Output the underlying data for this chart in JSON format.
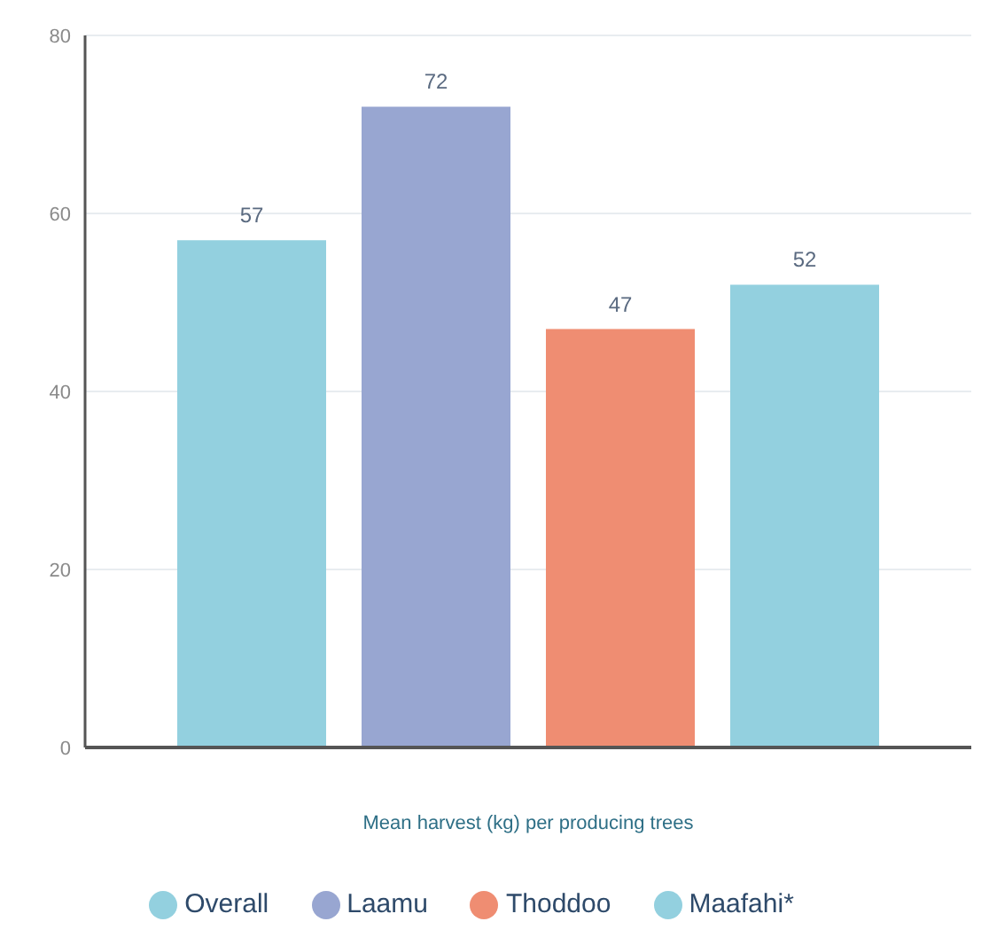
{
  "chart_data": {
    "type": "bar",
    "xlabel": "Mean harvest (kg) per producing trees",
    "categories": [
      null
    ],
    "series": [
      {
        "name": "Overall",
        "color": "#93d0df",
        "values": [
          57
        ]
      },
      {
        "name": "Laamu",
        "color": "#98a6d1",
        "values": [
          72
        ]
      },
      {
        "name": "Thoddoo",
        "color": "#ef8d72",
        "values": [
          47
        ]
      },
      {
        "name": "Maafahi*",
        "color": "#93d0df",
        "values": [
          52
        ]
      }
    ],
    "ylim": [
      0,
      80
    ],
    "yticks": [
      0,
      20,
      40,
      60,
      80
    ],
    "grid": "y",
    "legend": "bottom",
    "data_labels": true
  }
}
